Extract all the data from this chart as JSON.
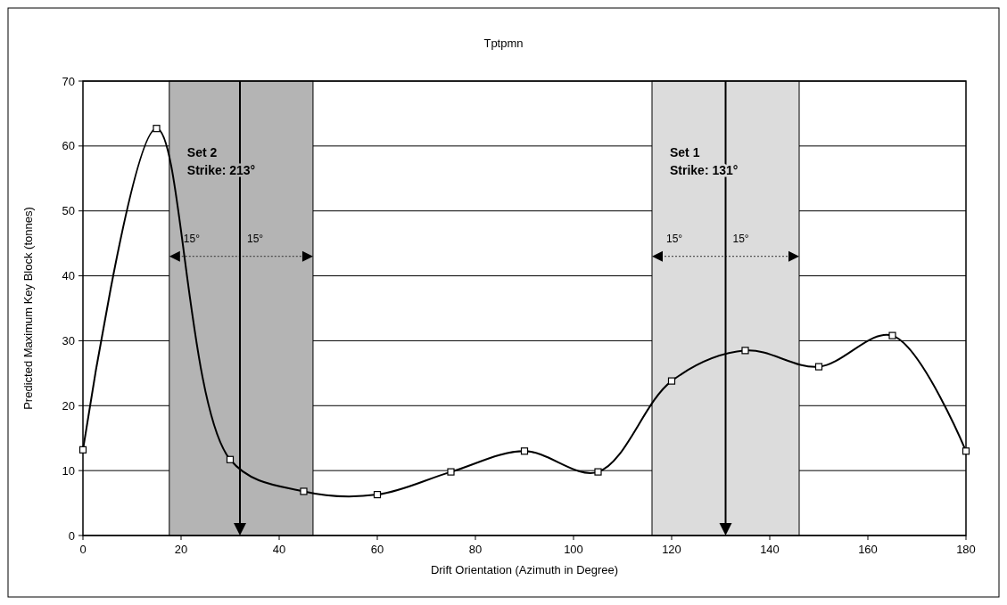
{
  "chart_data": {
    "type": "line",
    "title": "Tptpmn",
    "xlabel": "Drift Orientation (Azimuth in Degree)",
    "ylabel": "Predicted Maximum Key Block (tonnes)",
    "x": [
      0,
      15,
      30,
      45,
      60,
      75,
      90,
      105,
      120,
      135,
      150,
      165,
      180
    ],
    "series": [
      {
        "color": "#000000",
        "values": [
          13.2,
          62.7,
          11.7,
          6.8,
          6.3,
          9.8,
          13,
          9.8,
          23.8,
          28.5,
          26,
          30.8,
          13
        ]
      }
    ],
    "xlim": [
      0,
      180
    ],
    "xticks": [
      0,
      20,
      40,
      60,
      80,
      100,
      120,
      140,
      160,
      180
    ],
    "ylim": [
      0,
      70
    ],
    "yticks": [
      0,
      10,
      20,
      30,
      40,
      50,
      60,
      70
    ],
    "grid": "y",
    "marker": "square",
    "line_style": "solid",
    "bands": [
      {
        "axis": "x",
        "from": 17.6,
        "to": 46.9,
        "label": "Set 2\nStrike: 213°",
        "color": "#b4b4b4"
      },
      {
        "axis": "x",
        "from": 116,
        "to": 146,
        "label": "Set 1\nStrike: 131°",
        "color": "#dcdcdc"
      }
    ],
    "ref_lines": [
      {
        "axis": "x",
        "value": 32
      },
      {
        "axis": "x",
        "value": 131
      }
    ],
    "annotations": [
      "15°",
      "15°",
      "15°",
      "15°"
    ]
  }
}
